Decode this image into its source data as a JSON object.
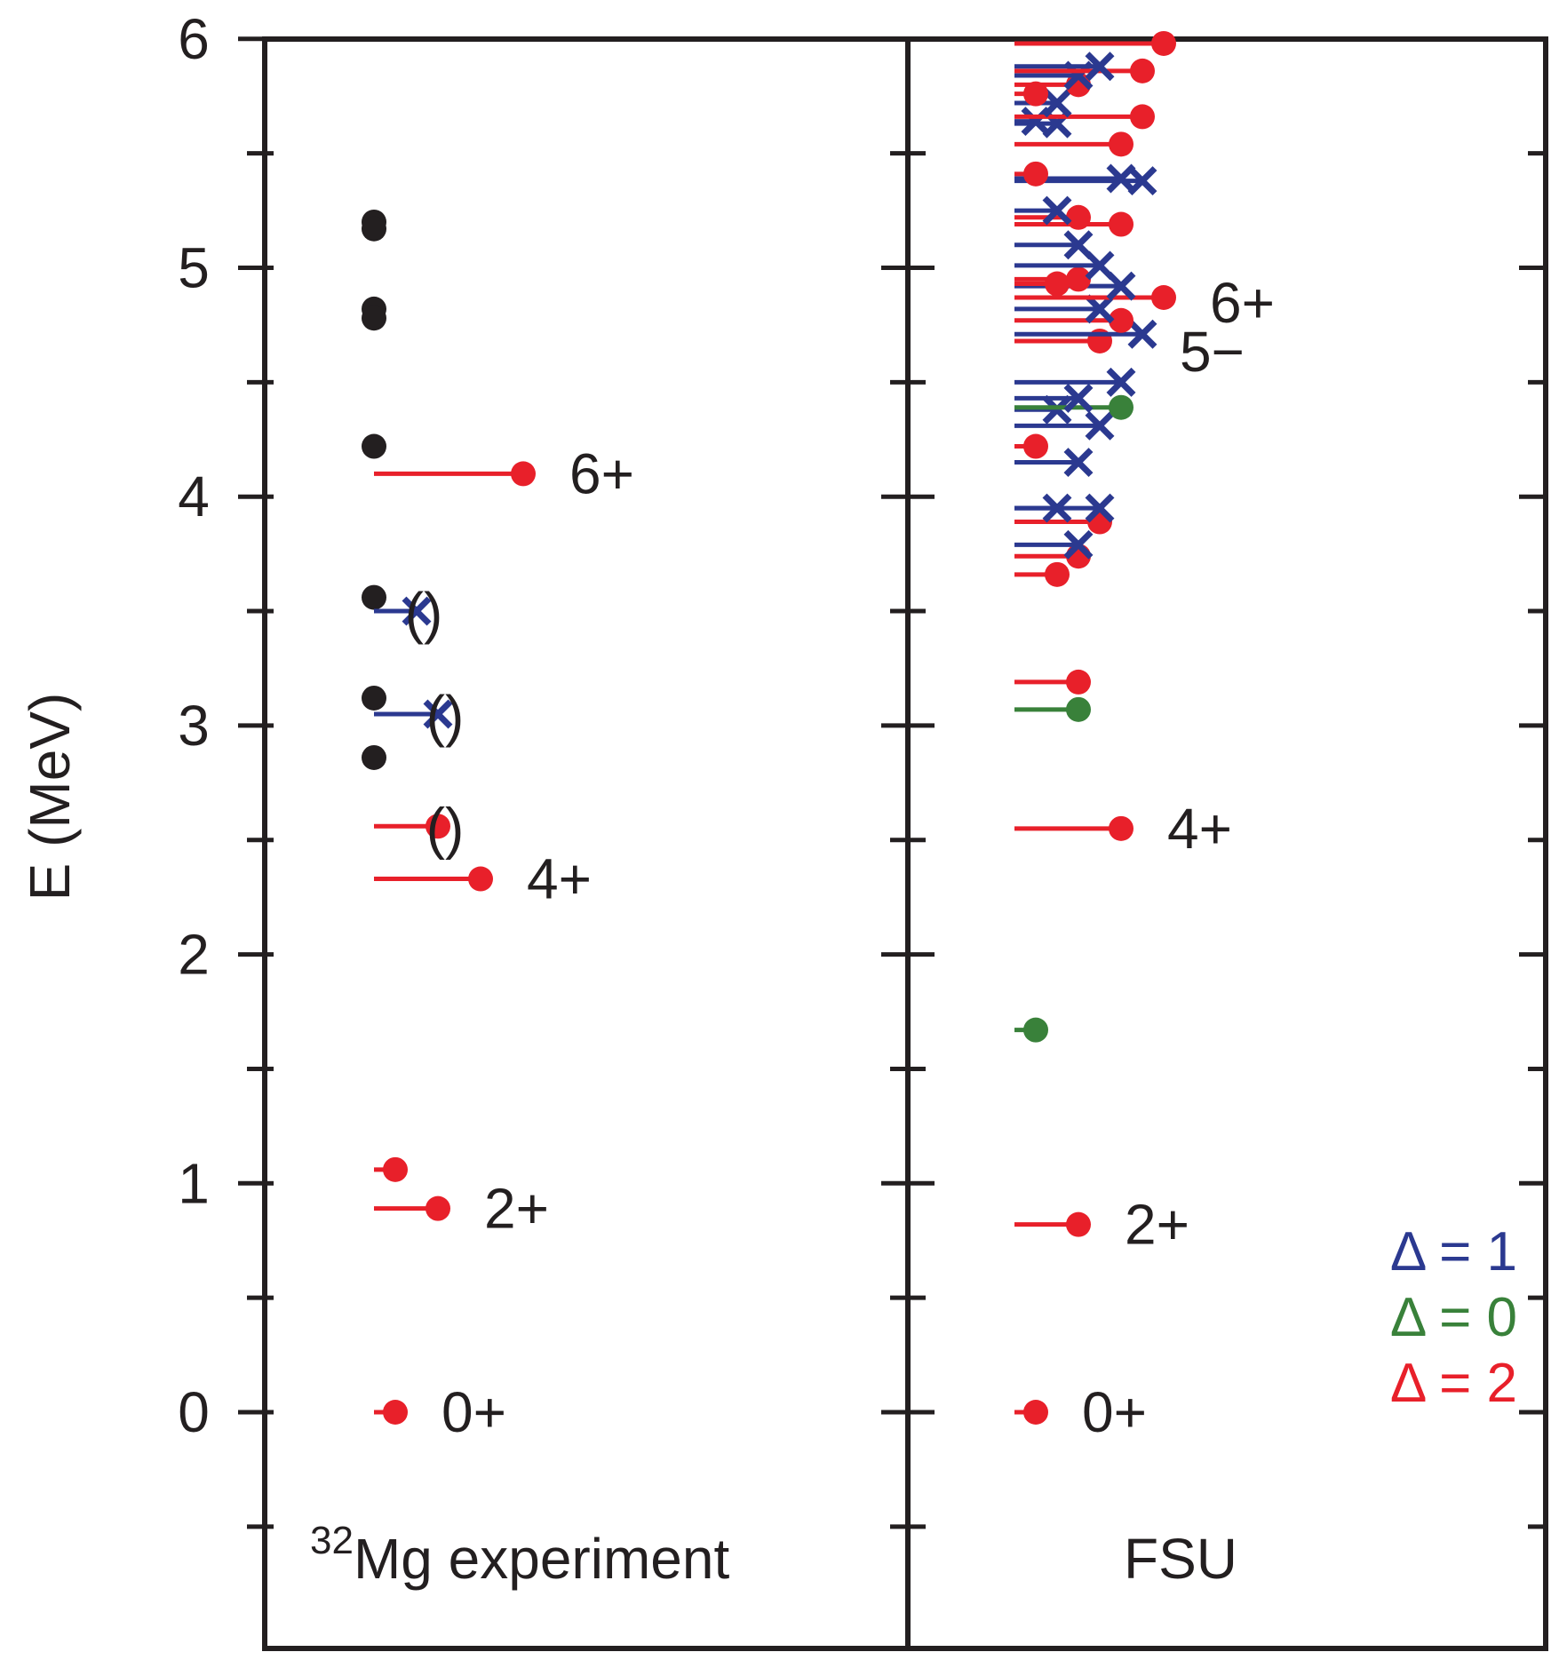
{
  "chart_data": {
    "type": "level-scheme",
    "title": "",
    "ylabel": "E (MeV)",
    "ylim": [
      -0.75,
      6
    ],
    "yticks": [
      0,
      1,
      2,
      3,
      4,
      5,
      6
    ],
    "colors": {
      "delta1": "#2b3990",
      "delta0": "#39813a",
      "delta2": "#e8202a",
      "exp": "#231f20",
      "axis": "#231f20"
    },
    "legend": [
      {
        "label": "Δ = 1",
        "color": "#2b3990"
      },
      {
        "label": "Δ = 0",
        "color": "#39813a"
      },
      {
        "label": "Δ = 2",
        "color": "#e8202a"
      }
    ],
    "panels": [
      {
        "name": "experiment",
        "label_sup": "32",
        "label_main": "Mg experiment",
        "black_dots": [
          5.2,
          5.17,
          4.82,
          4.78,
          4.22,
          3.56,
          3.12,
          2.86
        ],
        "levels": [
          {
            "e": 0.0,
            "len": 0.25,
            "marker": "dot",
            "color": "#e8202a",
            "label": "0+"
          },
          {
            "e": 0.89,
            "len": 0.75,
            "marker": "dot",
            "color": "#e8202a",
            "label": "2+"
          },
          {
            "e": 1.06,
            "len": 0.25,
            "marker": "dot",
            "color": "#e8202a",
            "label": ""
          },
          {
            "e": 2.33,
            "len": 1.25,
            "marker": "dot",
            "color": "#e8202a",
            "label": "4+"
          },
          {
            "e": 2.56,
            "len": 0.75,
            "marker": "dot",
            "color": "#e8202a",
            "label": "()"
          },
          {
            "e": 3.05,
            "len": 0.75,
            "marker": "x",
            "color": "#2b3990",
            "label": "()"
          },
          {
            "e": 3.5,
            "len": 0.5,
            "marker": "x",
            "color": "#2b3990",
            "label": "()"
          },
          {
            "e": 4.1,
            "len": 1.75,
            "marker": "dot",
            "color": "#e8202a",
            "label": "6+"
          }
        ]
      },
      {
        "name": "fsu",
        "label_main": "FSU",
        "levels": [
          {
            "e": 0.0,
            "len": 0.25,
            "marker": "dot",
            "color": "#e8202a",
            "label": "0+"
          },
          {
            "e": 0.82,
            "len": 0.75,
            "marker": "dot",
            "color": "#e8202a",
            "label": "2+"
          },
          {
            "e": 1.67,
            "len": 0.25,
            "marker": "dot",
            "color": "#39813a",
            "label": ""
          },
          {
            "e": 2.55,
            "len": 1.25,
            "marker": "dot",
            "color": "#e8202a",
            "label": "4+"
          },
          {
            "e": 3.07,
            "len": 0.75,
            "marker": "dot",
            "color": "#39813a",
            "label": ""
          },
          {
            "e": 3.19,
            "len": 0.75,
            "marker": "dot",
            "color": "#e8202a",
            "label": ""
          },
          {
            "e": 3.66,
            "len": 0.5,
            "marker": "dot",
            "color": "#e8202a",
            "label": ""
          },
          {
            "e": 3.74,
            "len": 0.75,
            "marker": "dot",
            "color": "#e8202a",
            "label": ""
          },
          {
            "e": 3.79,
            "len": 0.75,
            "marker": "x",
            "color": "#2b3990",
            "label": ""
          },
          {
            "e": 3.89,
            "len": 1.0,
            "marker": "dot",
            "color": "#e8202a",
            "label": ""
          },
          {
            "e": 3.95,
            "len": 0.5,
            "marker": "x",
            "color": "#2b3990",
            "label": ""
          },
          {
            "e": 3.95,
            "len": 1.0,
            "marker": "x",
            "color": "#2b3990",
            "label": ""
          },
          {
            "e": 4.15,
            "len": 0.75,
            "marker": "x",
            "color": "#2b3990",
            "label": ""
          },
          {
            "e": 4.22,
            "len": 0.25,
            "marker": "dot",
            "color": "#e8202a",
            "label": ""
          },
          {
            "e": 4.31,
            "len": 1.0,
            "marker": "x",
            "color": "#2b3990",
            "label": ""
          },
          {
            "e": 4.38,
            "len": 0.5,
            "marker": "x",
            "color": "#2b3990",
            "label": ""
          },
          {
            "e": 4.39,
            "len": 1.25,
            "marker": "dot",
            "color": "#39813a",
            "label": ""
          },
          {
            "e": 4.43,
            "len": 0.75,
            "marker": "x",
            "color": "#2b3990",
            "label": ""
          },
          {
            "e": 4.5,
            "len": 1.25,
            "marker": "x",
            "color": "#2b3990",
            "label": ""
          },
          {
            "e": 4.68,
            "len": 1.0,
            "marker": "dot",
            "color": "#e8202a",
            "label": ""
          },
          {
            "e": 4.71,
            "len": 1.5,
            "marker": "x",
            "color": "#2b3990",
            "label": "5−"
          },
          {
            "e": 4.77,
            "len": 1.25,
            "marker": "dot",
            "color": "#e8202a",
            "label": ""
          },
          {
            "e": 4.82,
            "len": 1.0,
            "marker": "x",
            "color": "#2b3990",
            "label": ""
          },
          {
            "e": 4.87,
            "len": 1.75,
            "marker": "dot",
            "color": "#e8202a",
            "label": "6+"
          },
          {
            "e": 4.92,
            "len": 1.25,
            "marker": "x",
            "color": "#2b3990",
            "label": ""
          },
          {
            "e": 4.93,
            "len": 0.5,
            "marker": "dot",
            "color": "#e8202a",
            "label": ""
          },
          {
            "e": 4.95,
            "len": 0.75,
            "marker": "dot",
            "color": "#e8202a",
            "label": ""
          },
          {
            "e": 5.01,
            "len": 1.0,
            "marker": "x",
            "color": "#2b3990",
            "label": ""
          },
          {
            "e": 5.1,
            "len": 0.75,
            "marker": "x",
            "color": "#2b3990",
            "label": ""
          },
          {
            "e": 5.19,
            "len": 1.25,
            "marker": "dot",
            "color": "#e8202a",
            "label": ""
          },
          {
            "e": 5.22,
            "len": 0.75,
            "marker": "dot",
            "color": "#e8202a",
            "label": ""
          },
          {
            "e": 5.25,
            "len": 0.5,
            "marker": "x",
            "color": "#2b3990",
            "label": ""
          },
          {
            "e": 5.38,
            "len": 1.5,
            "marker": "x",
            "color": "#2b3990",
            "label": ""
          },
          {
            "e": 5.39,
            "len": 1.25,
            "marker": "x",
            "color": "#2b3990",
            "label": ""
          },
          {
            "e": 5.41,
            "len": 0.25,
            "marker": "dot",
            "color": "#e8202a",
            "label": ""
          },
          {
            "e": 5.54,
            "len": 1.25,
            "marker": "dot",
            "color": "#e8202a",
            "label": ""
          },
          {
            "e": 5.63,
            "len": 0.5,
            "marker": "x",
            "color": "#2b3990",
            "label": ""
          },
          {
            "e": 5.64,
            "len": 0.25,
            "marker": "x",
            "color": "#2b3990",
            "label": ""
          },
          {
            "e": 5.66,
            "len": 1.5,
            "marker": "dot",
            "color": "#e8202a",
            "label": ""
          },
          {
            "e": 5.72,
            "len": 0.5,
            "marker": "x",
            "color": "#2b3990",
            "label": ""
          },
          {
            "e": 5.76,
            "len": 0.25,
            "marker": "dot",
            "color": "#e8202a",
            "label": ""
          },
          {
            "e": 5.8,
            "len": 0.75,
            "marker": "dot",
            "color": "#e8202a",
            "label": ""
          },
          {
            "e": 5.84,
            "len": 0.75,
            "marker": "x",
            "color": "#2b3990",
            "label": ""
          },
          {
            "e": 5.86,
            "len": 1.5,
            "marker": "dot",
            "color": "#e8202a",
            "label": ""
          },
          {
            "e": 5.88,
            "len": 1.0,
            "marker": "x",
            "color": "#2b3990",
            "label": ""
          },
          {
            "e": 5.98,
            "len": 1.75,
            "marker": "dot",
            "color": "#e8202a",
            "label": ""
          }
        ]
      }
    ]
  }
}
